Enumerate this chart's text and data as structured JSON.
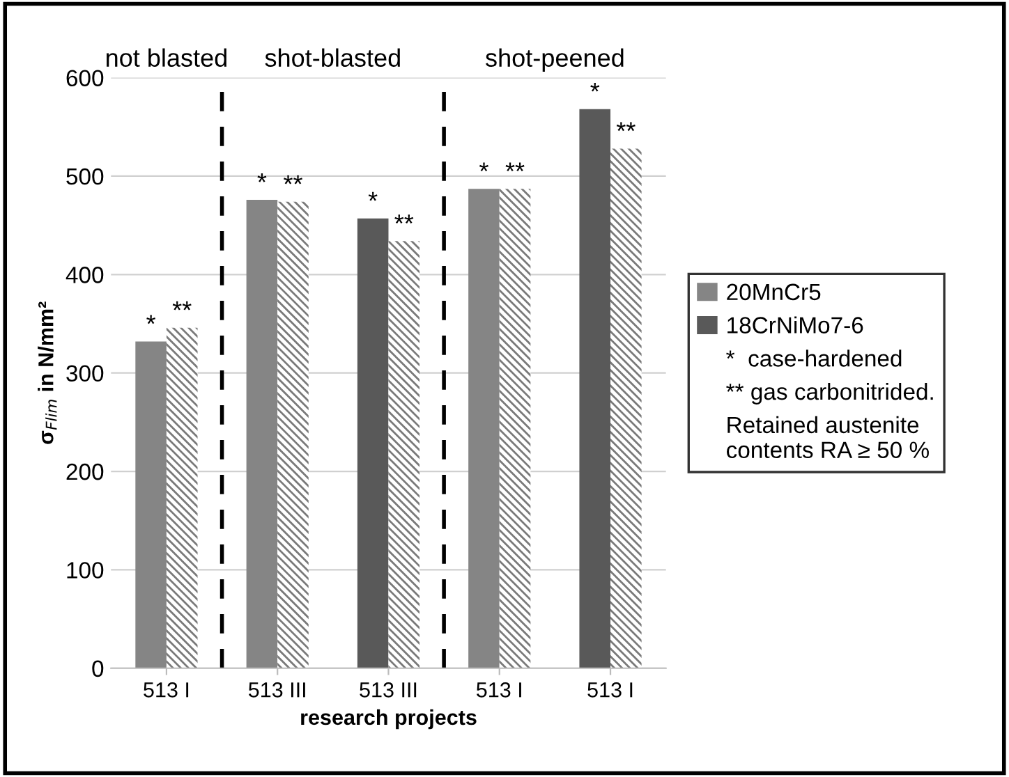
{
  "chart_data": {
    "type": "bar",
    "xlabel": "research projects",
    "ylabel": "σ$_{Flim}$ in N/mm²",
    "categories": [
      "513 I",
      "513 III",
      "513 III",
      "513 I",
      "513 I"
    ],
    "series": [
      {
        "name": "20MnCr5",
        "color": "#858585",
        "values": [
          332,
          476,
          null,
          487,
          null
        ],
        "value_labels": [
          "*",
          "*",
          null,
          "*",
          null
        ]
      },
      {
        "name": "18CrNiMo7-6",
        "color": "#595959",
        "values": [
          null,
          null,
          457,
          null,
          568
        ],
        "value_labels": [
          null,
          null,
          "*",
          null,
          "*"
        ]
      },
      {
        "color": "#7a7a7a",
        "values": [
          346,
          474,
          434,
          487,
          528
        ],
        "value_labels": [
          "**",
          "**",
          "**",
          "**",
          "**"
        ]
      }
    ],
    "ylim": [
      0,
      600
    ],
    "yticks": [
      0,
      100,
      200,
      300,
      400,
      500,
      600
    ],
    "grid": "y",
    "legend": "right",
    "annotations": [
      "not blasted",
      "shot-blasted",
      "shot-peened",
      "*  case-hardened",
      "** gas carbonitrided.",
      "Retained austenite\ncontents RA ≥ 50 %"
    ]
  }
}
